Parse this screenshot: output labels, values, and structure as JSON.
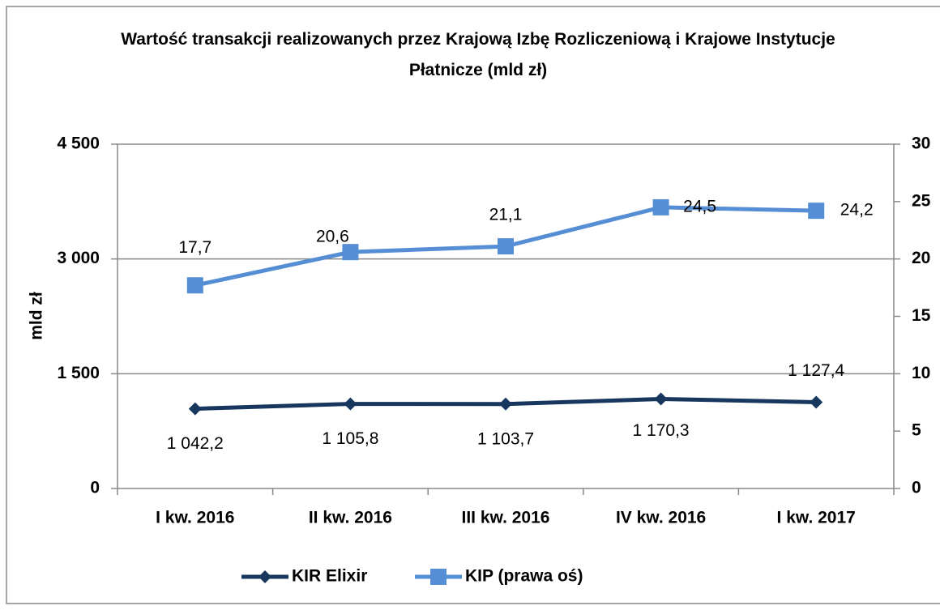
{
  "chart_data": {
    "type": "line",
    "title": "Wartość transakcji realizowanych przez Krajową Izbę Rozliczeniową i Krajowe Instytucje Płatnicze (mld zł)",
    "y_label": "mld zł",
    "categories": [
      "I kw. 2016",
      "II kw. 2016",
      "III kw. 2016",
      "IV kw. 2016",
      "I kw. 2017"
    ],
    "series": [
      {
        "name": "KIR Elixir",
        "color": "#17375e",
        "marker": "diamond",
        "values": [
          1042.2,
          1105.8,
          1103.7,
          1170.3,
          1127.4
        ],
        "value_labels": [
          "1 042,2",
          "1 105,8",
          "1 103,7",
          "1 170,3",
          "1 127,4"
        ]
      },
      {
        "name": "KIP (prawa oś)",
        "color": "#558ed5",
        "marker": "square",
        "axis": "y2",
        "values": [
          17.7,
          20.6,
          21.1,
          24.5,
          24.2
        ],
        "value_labels": [
          "17,7",
          "20,6",
          "21,1",
          "24,5",
          "24,2"
        ]
      }
    ],
    "ylim": [
      0,
      4500
    ],
    "yticks": [
      0,
      {
        "value": 1500,
        "label": "1 500"
      },
      {
        "value": 3000,
        "label": "3 000"
      },
      {
        "value": 4500,
        "label": "4 500"
      }
    ],
    "y2lim": [
      0,
      30
    ],
    "y2ticks": [
      0,
      5,
      10,
      15,
      20,
      25,
      30
    ],
    "grid": true,
    "legend": "bottom"
  }
}
